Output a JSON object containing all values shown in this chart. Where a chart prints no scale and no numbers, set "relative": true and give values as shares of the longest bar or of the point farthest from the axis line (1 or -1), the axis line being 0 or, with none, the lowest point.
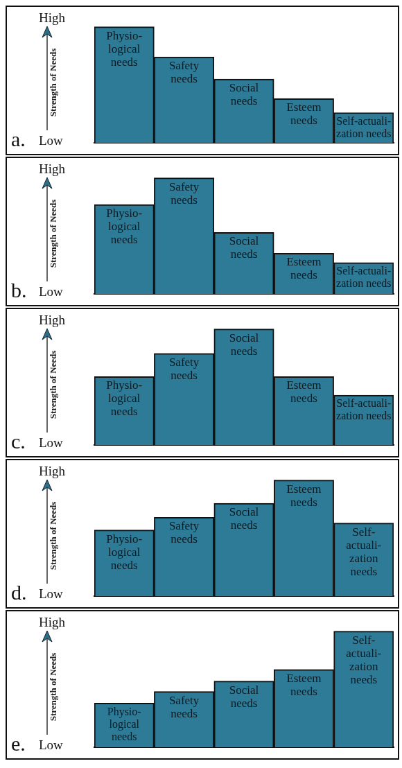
{
  "chart_data": [
    {
      "type": "bar",
      "title": "a.",
      "ylabel": "Strength of Needs",
      "annotations": [
        "High",
        "Low"
      ],
      "relative": true,
      "tick_labels": false,
      "grid": false,
      "legend": false,
      "color": "#2e7b97",
      "categories": [
        "Physio-logical needs",
        "Safety needs",
        "Social needs",
        "Esteem needs",
        "Self-actuali-zation needs"
      ],
      "values": [
        1,
        0.74,
        0.55,
        0.38,
        0.26
      ]
    },
    {
      "type": "bar",
      "title": "b.",
      "ylabel": "Strength of Needs",
      "annotations": [
        "High",
        "Low"
      ],
      "relative": true,
      "tick_labels": false,
      "grid": false,
      "legend": false,
      "color": "#2e7b97",
      "categories": [
        "Physio-logical needs",
        "Safety needs",
        "Social needs",
        "Esteem needs",
        "Self-actuali-zation needs"
      ],
      "values": [
        0.77,
        1,
        0.53,
        0.35,
        0.27
      ]
    },
    {
      "type": "bar",
      "title": "c.",
      "ylabel": "Strength of Needs",
      "annotations": [
        "High",
        "Low"
      ],
      "relative": true,
      "tick_labels": false,
      "grid": false,
      "legend": false,
      "color": "#2e7b97",
      "categories": [
        "Physio-logical needs",
        "Safety needs",
        "Social needs",
        "Esteem needs",
        "Self-actuali-zation needs"
      ],
      "values": [
        0.59,
        0.79,
        1,
        0.59,
        0.43
      ]
    },
    {
      "type": "bar",
      "title": "d.",
      "ylabel": "Strength of Needs",
      "annotations": [
        "High",
        "Low"
      ],
      "relative": true,
      "tick_labels": false,
      "grid": false,
      "legend": false,
      "color": "#2e7b97",
      "categories": [
        "Physio-logical needs",
        "Safety needs",
        "Social needs",
        "Esteem needs",
        "Self-actuali-zation needs"
      ],
      "values": [
        0.57,
        0.68,
        0.8,
        1,
        0.63
      ]
    },
    {
      "type": "bar",
      "title": "e.",
      "ylabel": "Strength of Needs",
      "annotations": [
        "High",
        "Low"
      ],
      "relative": true,
      "tick_labels": false,
      "grid": false,
      "legend": false,
      "color": "#2e7b97",
      "categories": [
        "Physio-logical needs",
        "Safety needs",
        "Social needs",
        "Esteem needs",
        "Self-actuali-zation needs"
      ],
      "values": [
        0.38,
        0.48,
        0.57,
        0.67,
        1
      ]
    }
  ]
}
